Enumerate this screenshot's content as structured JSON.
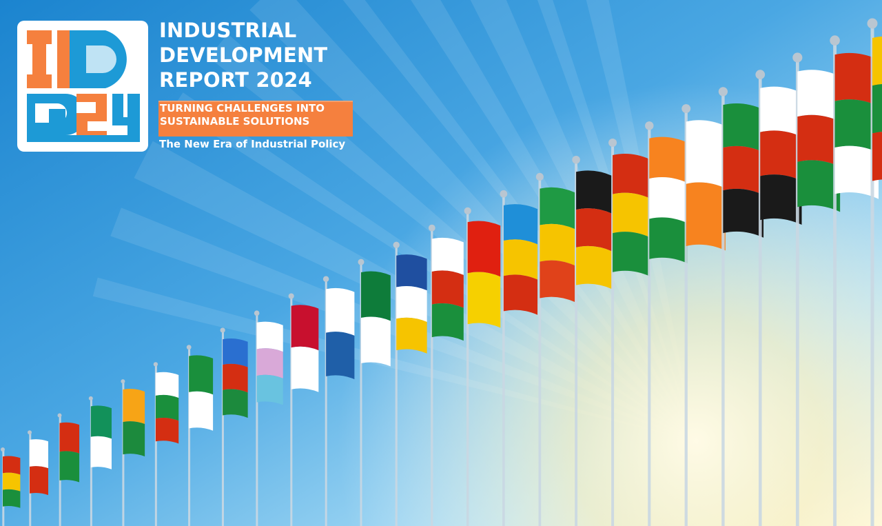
{
  "report": {
    "title_lines": [
      "INDUSTRIAL",
      "DEVELOPMENT",
      "REPORT 2024"
    ],
    "subtitle_lines": [
      "TURNING CHALLENGES INTO",
      "SUSTAINABLE SOLUTIONS"
    ],
    "tagline": "The New Era of Industrial Policy"
  },
  "logo": {
    "text": "ID24",
    "colors": {
      "orange": "#f5803e",
      "blue": "#1d9ad6",
      "light_blue": "#bfe3f4",
      "white": "#ffffff"
    }
  },
  "scene": {
    "description_icon": "flagpoles-row",
    "sky_colors": [
      "#1b84cf",
      "#4aa7e3",
      "#a9dcf5",
      "#fff8d8"
    ],
    "flag_colors": [
      [
        "#d42e12",
        "#f6c400",
        "#1a8f3c"
      ],
      [
        "#ffffff",
        "#d42e12"
      ],
      [
        "#d42e12",
        "#1a8f3c"
      ],
      [
        "#12915a",
        "#ffffff"
      ],
      [
        "#f7a416",
        "#1c8a3d"
      ],
      [
        "#ffffff",
        "#1a8f3c",
        "#d42e12"
      ],
      [
        "#1a8f3c",
        "#ffffff"
      ],
      [
        "#2a6fd0",
        "#d42e12",
        "#1c8a3d"
      ],
      [
        "#ffffff",
        "#d9a9d8",
        "#69c3e0"
      ],
      [
        "#c8102e",
        "#ffffff"
      ],
      [
        "#ffffff",
        "#1f5fa8"
      ],
      [
        "#0e7c3a",
        "#ffffff"
      ],
      [
        "#1f4fa0",
        "#ffffff",
        "#f6c400"
      ],
      [
        "#ffffff",
        "#d42e12",
        "#1a8f3c"
      ],
      [
        "#e02010",
        "#f6d000"
      ],
      [
        "#1f8fd8",
        "#f6c400",
        "#d42e12"
      ],
      [
        "#1f9a44",
        "#f6c400",
        "#e0421a"
      ],
      [
        "#1a1a1a",
        "#d42e12",
        "#f6c400"
      ],
      [
        "#d42e12",
        "#f6c400",
        "#1a8f3c"
      ],
      [
        "#f7831f",
        "#ffffff",
        "#1a8f3c"
      ],
      [
        "#ffffff",
        "#f7831f"
      ],
      [
        "#1a8f3c",
        "#d42e12",
        "#1a1a1a"
      ],
      [
        "#ffffff",
        "#d42e12",
        "#1a1a1a"
      ],
      [
        "#ffffff",
        "#d42e12",
        "#1a8f3c"
      ],
      [
        "#d42e12",
        "#1a8f3c",
        "#ffffff"
      ],
      [
        "#f6c400",
        "#1a8f3c",
        "#d42e12"
      ]
    ]
  }
}
